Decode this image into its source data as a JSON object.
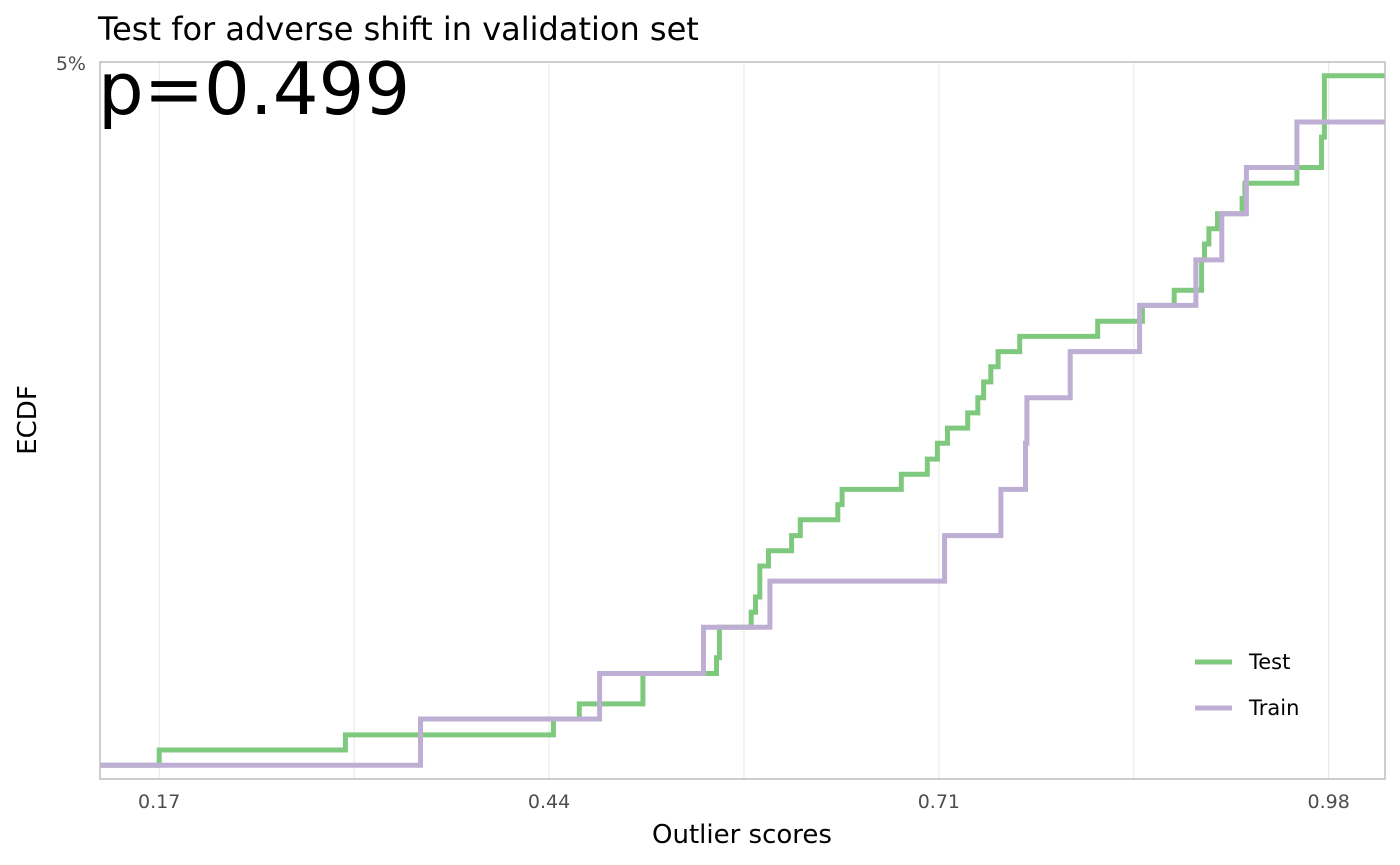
{
  "chart_data": {
    "type": "line",
    "title": "Test for adverse shift in validation set",
    "annotation": "p=0.499",
    "xlabel": "Outlier scores",
    "ylabel": "ECDF",
    "y_tick_labels": [
      "5%"
    ],
    "x_ticks": [
      0.17,
      0.44,
      0.71,
      0.98
    ],
    "x_tick_labels": [
      "0.17",
      "0.44",
      "0.71",
      "0.98"
    ],
    "xlim": [
      0.129,
      1.019
    ],
    "ylim": [
      -0.02,
      1.02
    ],
    "grid": true,
    "legend_position": "bottom-right",
    "series": [
      {
        "name": "Test",
        "color": "#7fc97f",
        "step": true,
        "points": [
          [
            0.129,
            0.0
          ],
          [
            0.17,
            0.0
          ],
          [
            0.17,
            0.022
          ],
          [
            0.299,
            0.022
          ],
          [
            0.299,
            0.044
          ],
          [
            0.443,
            0.044
          ],
          [
            0.443,
            0.067
          ],
          [
            0.461,
            0.067
          ],
          [
            0.461,
            0.089
          ],
          [
            0.505,
            0.089
          ],
          [
            0.505,
            0.133
          ],
          [
            0.556,
            0.133
          ],
          [
            0.556,
            0.156
          ],
          [
            0.558,
            0.156
          ],
          [
            0.558,
            0.2
          ],
          [
            0.58,
            0.2
          ],
          [
            0.58,
            0.222
          ],
          [
            0.583,
            0.222
          ],
          [
            0.583,
            0.244
          ],
          [
            0.586,
            0.244
          ],
          [
            0.586,
            0.289
          ],
          [
            0.592,
            0.289
          ],
          [
            0.592,
            0.311
          ],
          [
            0.608,
            0.311
          ],
          [
            0.608,
            0.333
          ],
          [
            0.614,
            0.333
          ],
          [
            0.614,
            0.356
          ],
          [
            0.64,
            0.356
          ],
          [
            0.64,
            0.378
          ],
          [
            0.643,
            0.378
          ],
          [
            0.643,
            0.4
          ],
          [
            0.684,
            0.4
          ],
          [
            0.684,
            0.422
          ],
          [
            0.702,
            0.422
          ],
          [
            0.702,
            0.444
          ],
          [
            0.709,
            0.444
          ],
          [
            0.709,
            0.467
          ],
          [
            0.716,
            0.467
          ],
          [
            0.716,
            0.489
          ],
          [
            0.73,
            0.489
          ],
          [
            0.73,
            0.511
          ],
          [
            0.737,
            0.511
          ],
          [
            0.737,
            0.533
          ],
          [
            0.741,
            0.533
          ],
          [
            0.741,
            0.556
          ],
          [
            0.746,
            0.556
          ],
          [
            0.746,
            0.578
          ],
          [
            0.751,
            0.578
          ],
          [
            0.751,
            0.6
          ],
          [
            0.766,
            0.6
          ],
          [
            0.766,
            0.622
          ],
          [
            0.82,
            0.622
          ],
          [
            0.82,
            0.644
          ],
          [
            0.851,
            0.644
          ],
          [
            0.851,
            0.667
          ],
          [
            0.873,
            0.667
          ],
          [
            0.873,
            0.689
          ],
          [
            0.892,
            0.689
          ],
          [
            0.892,
            0.733
          ],
          [
            0.894,
            0.733
          ],
          [
            0.894,
            0.756
          ],
          [
            0.897,
            0.756
          ],
          [
            0.897,
            0.778
          ],
          [
            0.903,
            0.778
          ],
          [
            0.903,
            0.8
          ],
          [
            0.92,
            0.8
          ],
          [
            0.92,
            0.822
          ],
          [
            0.922,
            0.822
          ],
          [
            0.922,
            0.844
          ],
          [
            0.958,
            0.844
          ],
          [
            0.958,
            0.867
          ],
          [
            0.975,
            0.867
          ],
          [
            0.975,
            0.911
          ],
          [
            0.977,
            0.911
          ],
          [
            0.977,
            1.0
          ],
          [
            1.019,
            1.0
          ]
        ]
      },
      {
        "name": "Train",
        "color": "#beaed4",
        "step": true,
        "points": [
          [
            0.129,
            0.0
          ],
          [
            0.351,
            0.0
          ],
          [
            0.351,
            0.067
          ],
          [
            0.475,
            0.067
          ],
          [
            0.475,
            0.133
          ],
          [
            0.547,
            0.133
          ],
          [
            0.547,
            0.2
          ],
          [
            0.593,
            0.2
          ],
          [
            0.593,
            0.267
          ],
          [
            0.714,
            0.267
          ],
          [
            0.714,
            0.333
          ],
          [
            0.753,
            0.333
          ],
          [
            0.753,
            0.4
          ],
          [
            0.77,
            0.4
          ],
          [
            0.77,
            0.467
          ],
          [
            0.771,
            0.467
          ],
          [
            0.771,
            0.533
          ],
          [
            0.801,
            0.533
          ],
          [
            0.801,
            0.6
          ],
          [
            0.849,
            0.6
          ],
          [
            0.849,
            0.667
          ],
          [
            0.888,
            0.667
          ],
          [
            0.888,
            0.733
          ],
          [
            0.906,
            0.733
          ],
          [
            0.906,
            0.8
          ],
          [
            0.923,
            0.8
          ],
          [
            0.923,
            0.867
          ],
          [
            0.958,
            0.867
          ],
          [
            0.958,
            0.933
          ],
          [
            1.019,
            0.933
          ]
        ]
      }
    ]
  }
}
